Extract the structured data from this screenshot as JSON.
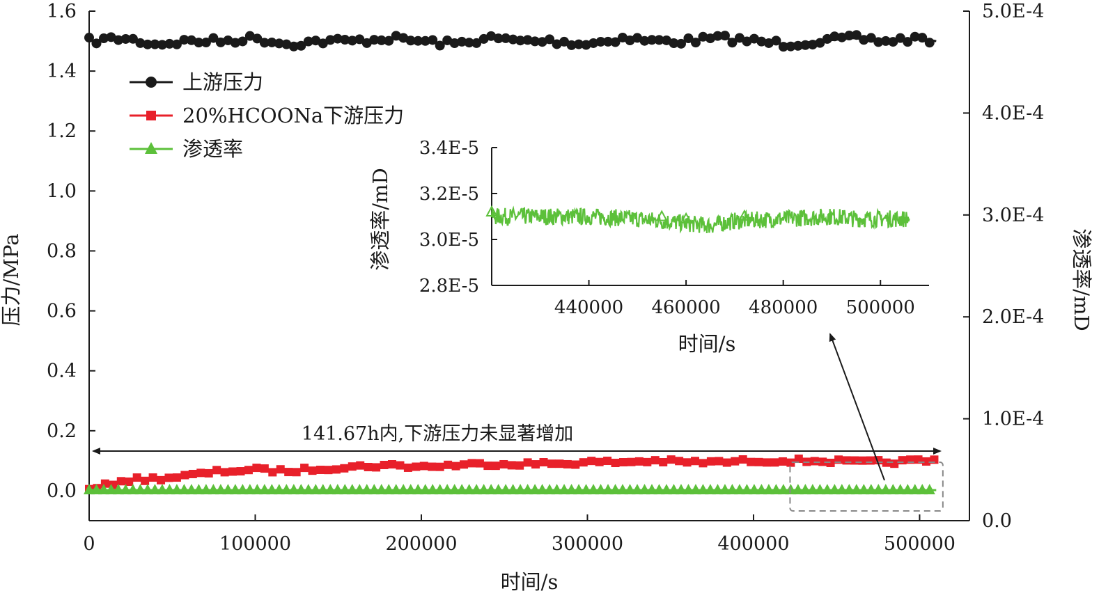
{
  "chart_data": [
    {
      "type": "line",
      "xlabel": "时间/s",
      "ylabel": "压力/MPa",
      "y2label": "渗透率/mD",
      "xlim": [
        0,
        530000
      ],
      "ylim": [
        -0.1,
        1.6
      ],
      "y2lim": [
        0,
        0.0005
      ],
      "xticks": [
        0,
        100000,
        200000,
        300000,
        400000,
        500000
      ],
      "yticks": [
        "0.0",
        "0.2",
        "0.4",
        "0.6",
        "0.8",
        "1.0",
        "1.2",
        "1.4",
        "1.6"
      ],
      "y2ticks": [
        "0.0",
        "1.0E-4",
        "2.0E-4",
        "3.0E-4",
        "4.0E-4",
        "5.0E-4"
      ],
      "legend_position": "top-left",
      "grid": false,
      "x": [
        0,
        20000,
        40000,
        60000,
        80000,
        100000,
        120000,
        140000,
        160000,
        180000,
        200000,
        220000,
        240000,
        260000,
        280000,
        300000,
        320000,
        340000,
        360000,
        380000,
        400000,
        420000,
        440000,
        460000,
        480000,
        500000,
        510000
      ],
      "series": [
        {
          "name": "上游压力",
          "axis": "left",
          "color": "#1a1a1a",
          "marker": "circle",
          "values": [
            1.5,
            1.51,
            1.49,
            1.5,
            1.5,
            1.51,
            1.49,
            1.5,
            1.5,
            1.51,
            1.5,
            1.49,
            1.51,
            1.5,
            1.5,
            1.49,
            1.51,
            1.5,
            1.5,
            1.51,
            1.5,
            1.49,
            1.5,
            1.51,
            1.5,
            1.51,
            1.5
          ]
        },
        {
          "name": "20%HCOONa下游压力",
          "axis": "left",
          "color": "#e8202a",
          "marker": "square",
          "values": [
            0.0,
            0.035,
            0.04,
            0.05,
            0.065,
            0.07,
            0.065,
            0.075,
            0.08,
            0.085,
            0.08,
            0.085,
            0.09,
            0.09,
            0.09,
            0.095,
            0.095,
            0.1,
            0.095,
            0.095,
            0.1,
            0.1,
            0.1,
            0.095,
            0.095,
            0.1,
            0.1
          ]
        },
        {
          "name": "渗透率",
          "axis": "right",
          "color": "#5cc03a",
          "marker": "triangle",
          "values": [
            3e-05,
            3e-05,
            3e-05,
            3e-05,
            3e-05,
            3e-05,
            3e-05,
            3e-05,
            3e-05,
            3e-05,
            3e-05,
            3e-05,
            3e-05,
            3e-05,
            3e-05,
            3e-05,
            3e-05,
            3e-05,
            3e-05,
            3e-05,
            3e-05,
            3e-05,
            3e-05,
            3e-05,
            3e-05,
            3e-05,
            3e-05
          ]
        }
      ],
      "annotations": [
        {
          "text": "141.67h内,下游压力未显著增加"
        }
      ]
    },
    {
      "type": "line",
      "inset": true,
      "xlabel": "时间/s",
      "ylabel": "渗透率/mD",
      "xlim": [
        420000,
        510000
      ],
      "ylim": [
        2.8e-05,
        3.4e-05
      ],
      "xticks": [
        "440000",
        "460000",
        "480000",
        "500000"
      ],
      "yticks": [
        "2.8E-5",
        "3.0E-5",
        "3.2E-5",
        "3.4E-5"
      ],
      "series": [
        {
          "color": "#5cc03a",
          "x": [
            420000,
            430000,
            440000,
            450000,
            455000,
            460000,
            465000,
            470000,
            480000,
            490000,
            495000,
            500000,
            506000
          ],
          "values": [
            3.1e-05,
            3.1e-05,
            3.1e-05,
            3.09e-05,
            3.08e-05,
            3.07e-05,
            3.06e-05,
            3.08e-05,
            3.09e-05,
            3.1e-05,
            3.09e-05,
            3.09e-05,
            3.09e-05
          ]
        }
      ]
    }
  ]
}
